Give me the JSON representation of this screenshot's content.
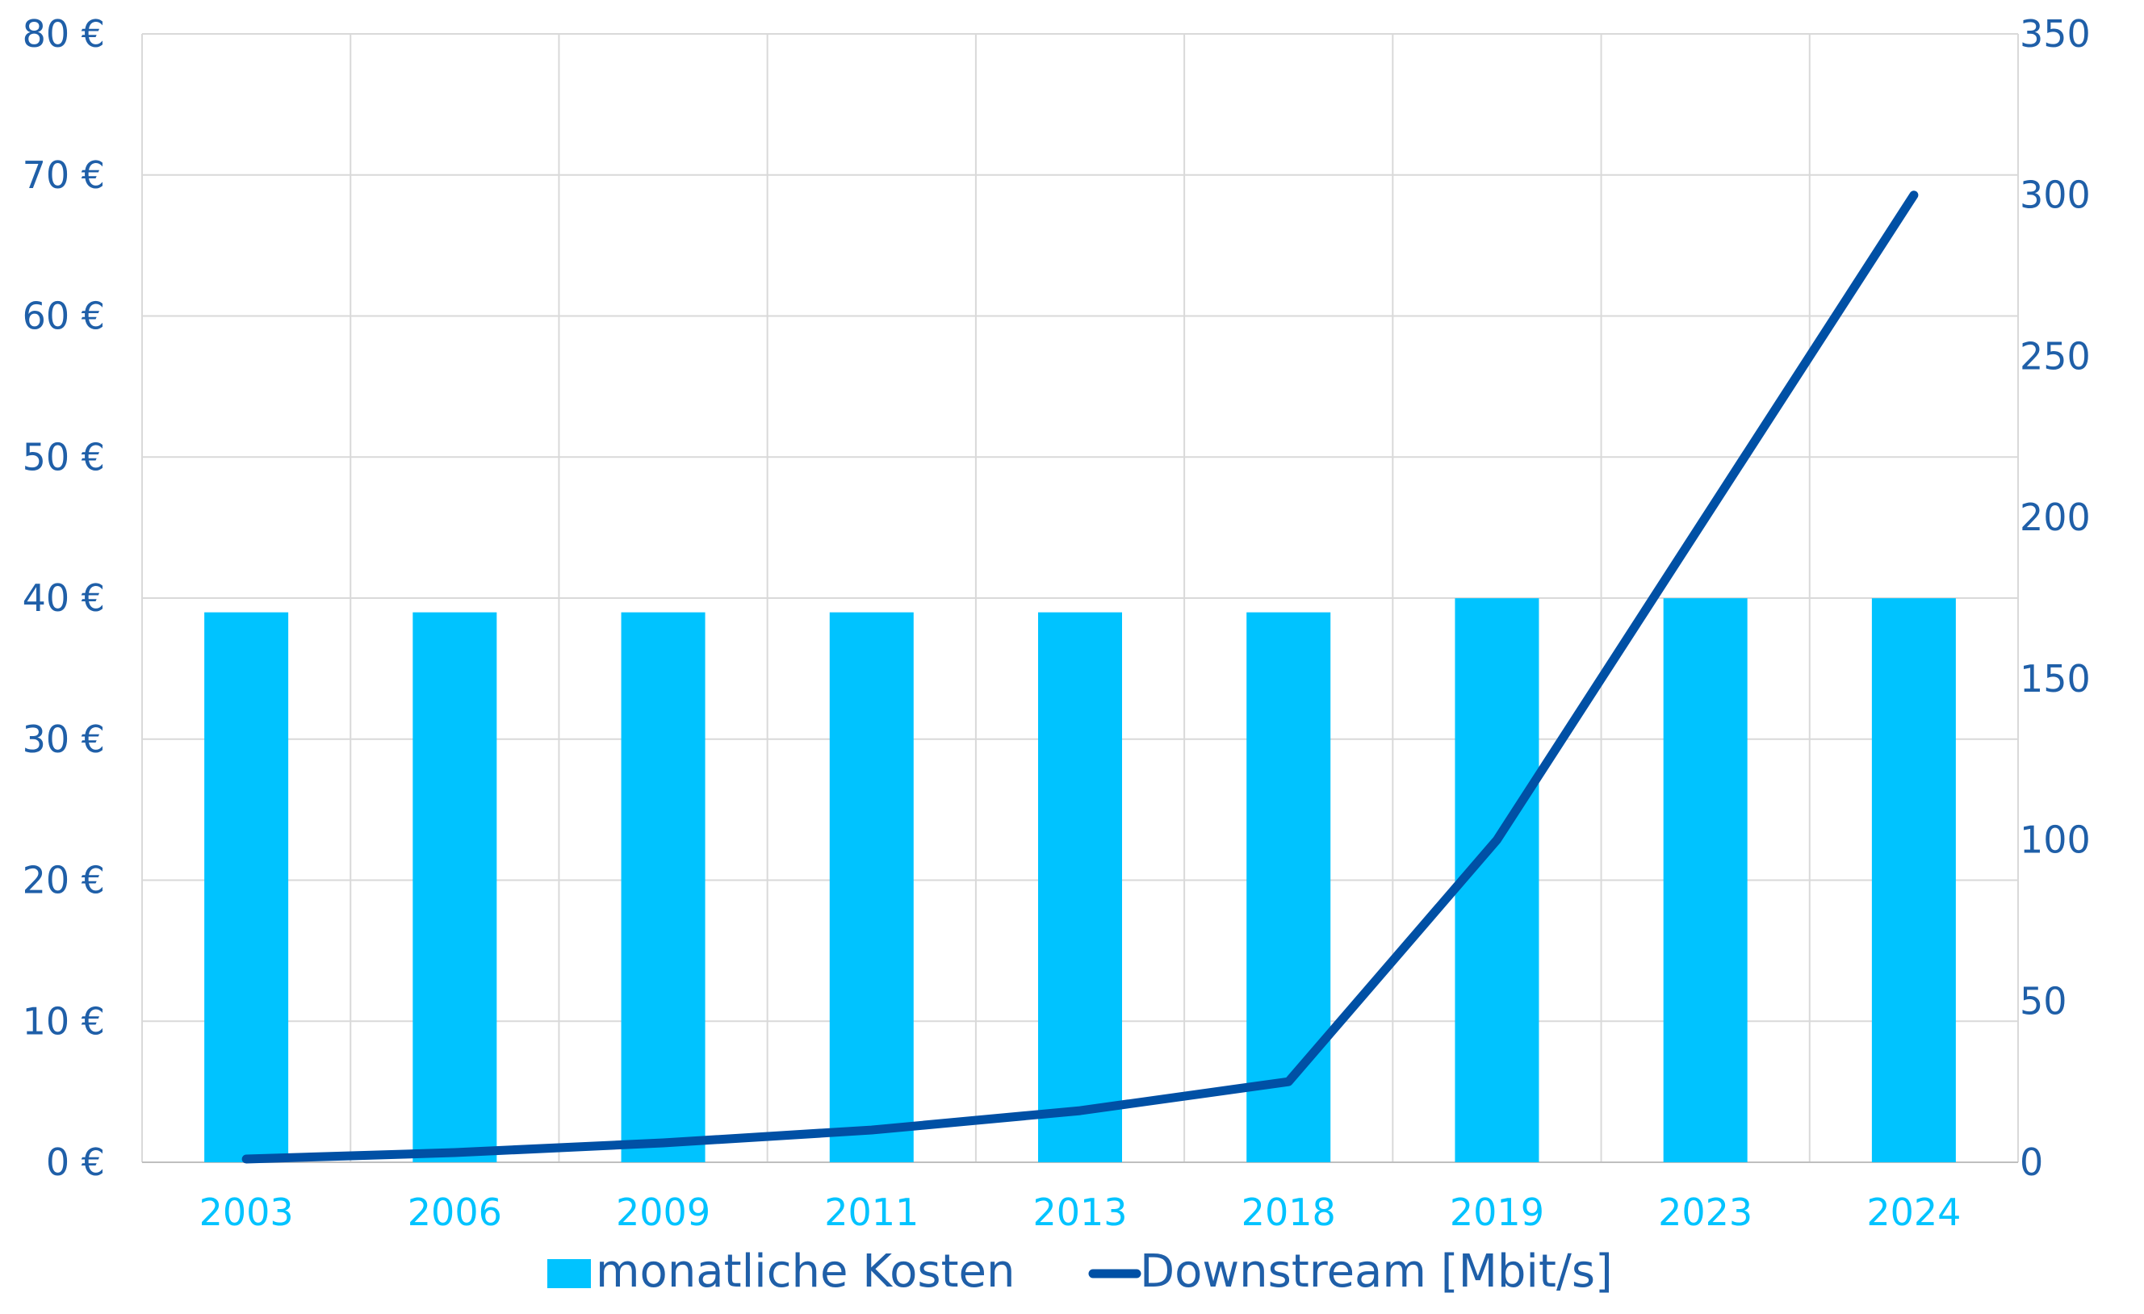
{
  "colors": {
    "bar": "#00C3FF",
    "line": "#0050A5",
    "left_axis_text": "#1F5FA8",
    "right_axis_text": "#1F5FA8",
    "x_axis_text": "#00C3FF",
    "legend_text": "#1F5FA8",
    "grid": "#D9D9D9"
  },
  "chart_data": {
    "type": "bar",
    "categories": [
      "2003",
      "2006",
      "2009",
      "2011",
      "2013",
      "2018",
      "2019",
      "2023",
      "2024"
    ],
    "series": [
      {
        "name": "monatliche Kosten",
        "type": "bar",
        "axis": "left",
        "values": [
          38.99,
          38.99,
          38.99,
          38.99,
          38.99,
          38.99,
          39.99,
          39.99,
          39.99
        ]
      },
      {
        "name": "Downstream [Mbit/s]",
        "type": "line",
        "axis": "right",
        "values": [
          1,
          3,
          6,
          10,
          16,
          25,
          100,
          200,
          300
        ]
      }
    ],
    "left_axis": {
      "range": [
        0,
        80
      ],
      "ticks": [
        "0 €",
        "10 €",
        "20 €",
        "30 €",
        "40 €",
        "50 €",
        "60 €",
        "70 €",
        "80 €"
      ]
    },
    "right_axis": {
      "range": [
        0,
        350
      ],
      "ticks": [
        "0",
        "50",
        "100",
        "150",
        "200",
        "250",
        "300",
        "350"
      ]
    },
    "grid": true,
    "legend_position": "bottom"
  }
}
